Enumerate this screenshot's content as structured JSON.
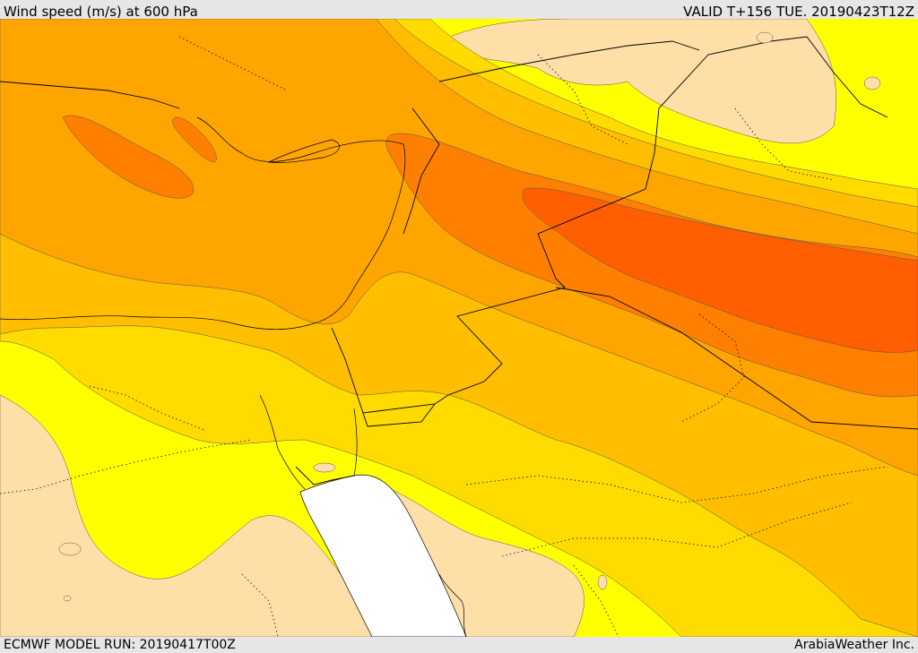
{
  "header": {
    "title": "Wind speed (m/s) at 600 hPa",
    "valid": "VALID T+156 TUE. 20190423T12Z"
  },
  "footer": {
    "model_run": "ECMWF MODEL RUN: 20190417T00Z",
    "credit": "ArabiaWeather Inc."
  },
  "palette": {
    "level_0": "#ffdfa8",
    "level_1": "#ffff00",
    "level_2": "#ffdb00",
    "level_3": "#ffbf00",
    "level_4": "#ffa500",
    "level_5": "#ff7f00",
    "level_6": "#ff5f00",
    "sea": "#ffffff"
  }
}
